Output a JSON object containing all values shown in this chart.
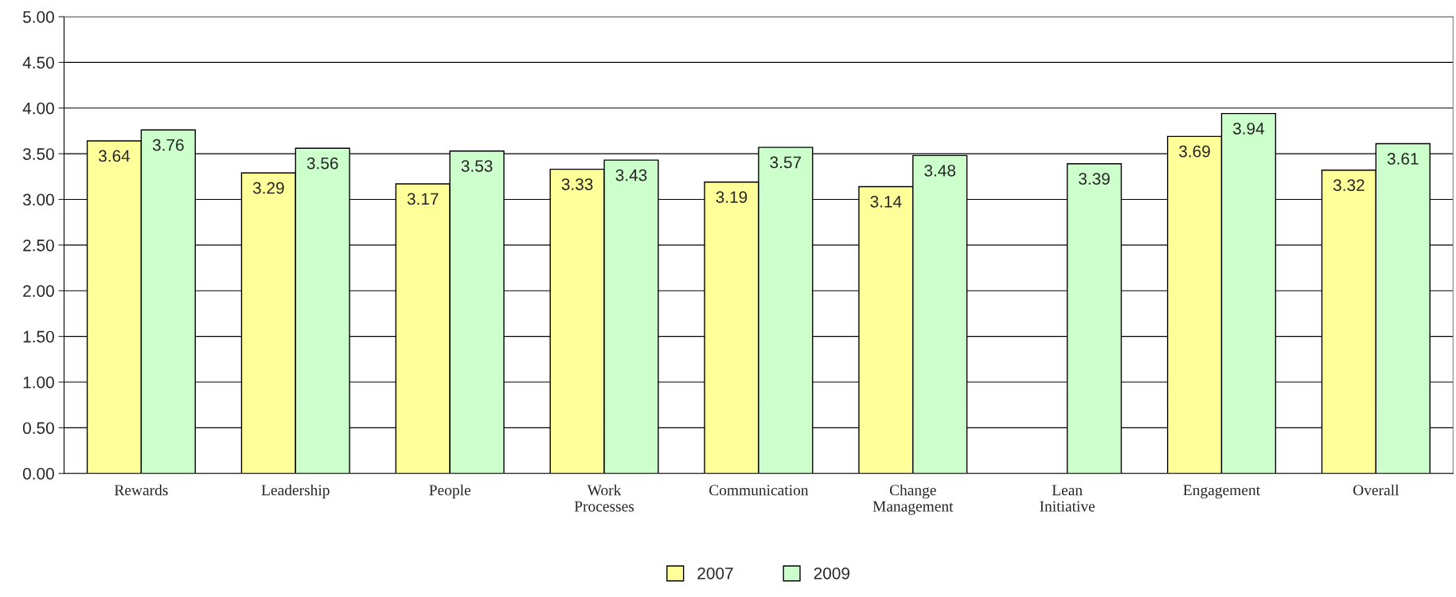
{
  "chart_data": {
    "type": "bar",
    "categories": [
      "Rewards",
      "Leadership",
      "People",
      "Work\nProcesses",
      "Communication",
      "Change\nManagement",
      "Lean\nInitiative",
      "Engagement",
      "Overall"
    ],
    "series": [
      {
        "name": "2007",
        "color": "#ffff99",
        "values": [
          3.64,
          3.29,
          3.17,
          3.33,
          3.19,
          3.14,
          null,
          3.69,
          3.32
        ]
      },
      {
        "name": "2009",
        "color": "#ccffcc",
        "values": [
          3.76,
          3.56,
          3.53,
          3.43,
          3.57,
          3.48,
          3.39,
          3.94,
          3.61
        ]
      }
    ],
    "ylim": [
      0,
      5
    ],
    "yticks": [
      {
        "value": 0,
        "label": "0.00"
      },
      {
        "value": 0.5,
        "label": "0.50"
      },
      {
        "value": 1,
        "label": "1.00"
      },
      {
        "value": 1.5,
        "label": "1.50"
      },
      {
        "value": 2,
        "label": "2.00"
      },
      {
        "value": 2.5,
        "label": "2.50"
      },
      {
        "value": 3,
        "label": "3.00"
      },
      {
        "value": 3.5,
        "label": "3.50"
      },
      {
        "value": 4,
        "label": "4.00"
      },
      {
        "value": 4.5,
        "label": "4.50"
      },
      {
        "value": 5,
        "label": "5.00"
      }
    ],
    "grid": "y",
    "legend": "bottom",
    "data_labels": true
  }
}
